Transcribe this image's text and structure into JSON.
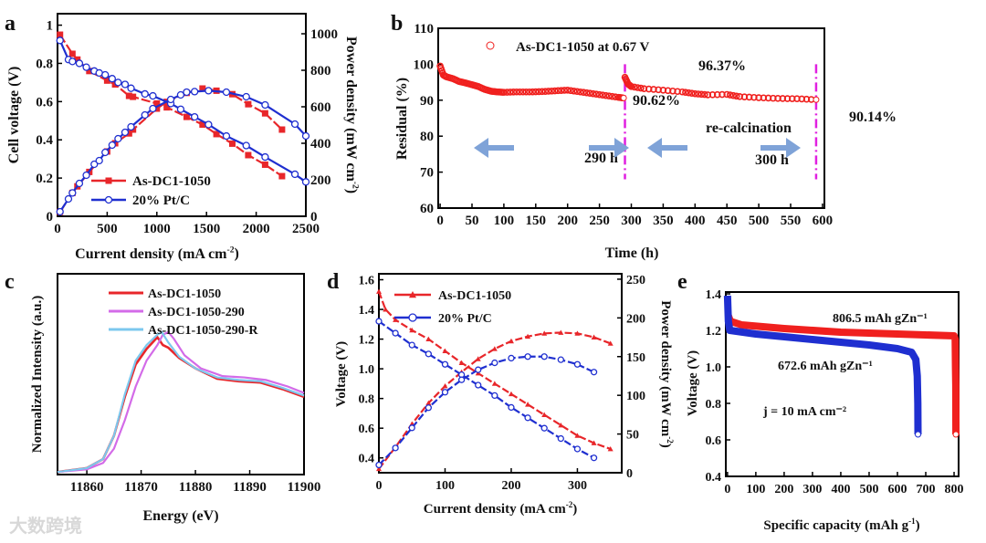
{
  "watermark": "大数跨境",
  "chart_data": [
    {
      "panel": "a",
      "type": "line",
      "xlabel": "Current density (mA cm⁻²)",
      "ylabel": "Cell voltage (V)",
      "y2label": "Power density (mW cm⁻²)",
      "xlim": [
        0,
        2500
      ],
      "ylim": [
        0,
        1.06
      ],
      "y2lim": [
        0,
        1110
      ],
      "xticks": [
        0,
        500,
        1000,
        1500,
        2000,
        2500
      ],
      "yticks": [
        0.0,
        0.2,
        0.4,
        0.6,
        0.8,
        1.0
      ],
      "y2ticks": [
        0,
        200,
        400,
        600,
        800,
        1000
      ],
      "legend": [
        "As-DC1-1050",
        "20% Pt/C"
      ],
      "legend_position": "bottom-left",
      "series": [
        {
          "name": "As-DC1-1050",
          "axis": "left",
          "color": "#e8262a",
          "marker": "square",
          "x": [
            25,
            150,
            200,
            320,
            500,
            580,
            720,
            760,
            1000,
            1100,
            1300,
            1460,
            1600,
            1760,
            1920,
            2090,
            2260
          ],
          "y": [
            0.95,
            0.85,
            0.82,
            0.76,
            0.71,
            0.69,
            0.63,
            0.625,
            0.59,
            0.57,
            0.52,
            0.48,
            0.43,
            0.38,
            0.32,
            0.27,
            0.21
          ]
        },
        {
          "name": "As-DC1-1050",
          "axis": "right",
          "color": "#e8262a",
          "marker": "square",
          "x": [
            25,
            150,
            200,
            320,
            500,
            580,
            720,
            760,
            1000,
            1100,
            1300,
            1460,
            1600,
            1760,
            1920,
            2090,
            2260
          ],
          "y": [
            24,
            128,
            164,
            243,
            355,
            400,
            454,
            475,
            590,
            627,
            676,
            700,
            688,
            669,
            614,
            564,
            475
          ]
        },
        {
          "name": "20% Pt/C",
          "axis": "left",
          "color": "#1f2fd0",
          "marker": "circle",
          "x": [
            25,
            110,
            150,
            220,
            290,
            370,
            420,
            480,
            550,
            610,
            680,
            740,
            880,
            960,
            1140,
            1240,
            1380,
            1520,
            1700,
            1900,
            2090,
            2390,
            2500
          ],
          "y": [
            0.92,
            0.82,
            0.81,
            0.8,
            0.78,
            0.76,
            0.75,
            0.74,
            0.72,
            0.7,
            0.69,
            0.67,
            0.64,
            0.63,
            0.59,
            0.56,
            0.52,
            0.48,
            0.42,
            0.37,
            0.31,
            0.22,
            0.18
          ]
        },
        {
          "name": "20% Pt/C",
          "axis": "right",
          "color": "#1f2fd0",
          "marker": "circle",
          "x": [
            25,
            110,
            150,
            220,
            290,
            370,
            420,
            480,
            550,
            610,
            680,
            740,
            880,
            960,
            1140,
            1240,
            1300,
            1380,
            1520,
            1700,
            1900,
            2090,
            2390,
            2500
          ],
          "y": [
            25,
            95,
            128,
            180,
            225,
            285,
            305,
            350,
            390,
            425,
            460,
            490,
            555,
            590,
            640,
            665,
            680,
            683,
            688,
            680,
            655,
            610,
            505,
            440
          ]
        }
      ]
    },
    {
      "panel": "b",
      "type": "scatter",
      "xlabel": "Time (h)",
      "ylabel": "Residual (%)",
      "xlim": [
        -3,
        603
      ],
      "ylim": [
        60,
        110
      ],
      "xticks": [
        0,
        50,
        100,
        150,
        200,
        250,
        300,
        350,
        400,
        450,
        500,
        550,
        600
      ],
      "yticks": [
        60,
        70,
        80,
        90,
        100,
        110
      ],
      "legend": [
        "As-DC1-1050 at 0.67 V"
      ],
      "legend_position": "top-left",
      "annotations": [
        "96.37%",
        "90.62%",
        "90.14%",
        "re-calcination",
        "290 h",
        "300 h"
      ],
      "vlines": [
        290,
        590
      ],
      "colors": {
        "series": "#f0201e",
        "vline": "#e020e0",
        "arrow": "#7fa3d8"
      },
      "series": [
        {
          "name": "As-DC1-1050 at 0.67 V",
          "x": [
            0,
            5,
            10,
            20,
            30,
            40,
            50,
            60,
            70,
            80,
            90,
            100,
            120,
            140,
            160,
            180,
            200,
            220,
            240,
            260,
            280,
            288
          ],
          "y": [
            99.5,
            97,
            96.5,
            96,
            95.2,
            94.8,
            94.3,
            93.8,
            93,
            92.5,
            92.3,
            92.2,
            92.3,
            92.3,
            92.4,
            92.6,
            92.8,
            92.3,
            91.8,
            91.3,
            90.8,
            90.62
          ]
        },
        {
          "name": "As-DC1-1050 at 0.67 V (after re-calcination)",
          "x": [
            290,
            295,
            300,
            320,
            350,
            380,
            400,
            420,
            450,
            470,
            500,
            530,
            560,
            590
          ],
          "y": [
            96.37,
            94.5,
            93.8,
            93.2,
            92.8,
            92.3,
            91.8,
            91.5,
            91.6,
            91.0,
            90.7,
            90.5,
            90.4,
            90.14
          ]
        }
      ]
    },
    {
      "panel": "c",
      "type": "line",
      "xlabel": "Energy (eV)",
      "ylabel": "Normalized Intensity (a.u.)",
      "xlim": [
        11854.6,
        11900
      ],
      "ylim": [
        0,
        1.55
      ],
      "xticks": [
        11860,
        11870,
        11880,
        11890,
        11900
      ],
      "legend": [
        "As-DC1-1050",
        "As-DC1-1050-290",
        "As-DC1-1050-290-R"
      ],
      "legend_position": "top-right",
      "series": [
        {
          "name": "As-DC1-1050",
          "color": "#e8262a",
          "x": [
            11854.6,
            11860,
            11863,
            11865,
            11867,
            11869,
            11871,
            11873,
            11874,
            11875,
            11877,
            11880,
            11884,
            11888,
            11892,
            11896,
            11900
          ],
          "y": [
            0.02,
            0.05,
            0.12,
            0.3,
            0.6,
            0.85,
            0.97,
            1.06,
            1.0,
            0.98,
            0.9,
            0.82,
            0.74,
            0.72,
            0.71,
            0.66,
            0.6
          ]
        },
        {
          "name": "As-DC1-1050-290",
          "color": "#d36be8",
          "x": [
            11854.6,
            11860,
            11863,
            11865,
            11867,
            11869,
            11871,
            11873,
            11874,
            11875,
            11876,
            11878,
            11881,
            11885,
            11889,
            11893,
            11897,
            11900
          ],
          "y": [
            0.02,
            0.04,
            0.09,
            0.2,
            0.42,
            0.68,
            0.88,
            1.0,
            1.08,
            1.1,
            1.05,
            0.92,
            0.82,
            0.76,
            0.75,
            0.73,
            0.68,
            0.63
          ]
        },
        {
          "name": "As-DC1-1050-290-R",
          "color": "#7cc8ee",
          "x": [
            11854.6,
            11860,
            11863,
            11865,
            11867,
            11869,
            11871,
            11873,
            11873.8,
            11875,
            11877,
            11880,
            11884,
            11888,
            11892,
            11896,
            11900
          ],
          "y": [
            0.02,
            0.05,
            0.12,
            0.3,
            0.62,
            0.88,
            1.0,
            1.08,
            1.1,
            1.02,
            0.91,
            0.82,
            0.75,
            0.73,
            0.72,
            0.67,
            0.61
          ]
        }
      ]
    },
    {
      "panel": "d",
      "type": "line",
      "xlabel": "Current density (mA cm⁻²)",
      "ylabel": "Voltage (V)",
      "y2label": "Power density (mW cm⁻²)",
      "xlim": [
        0,
        367
      ],
      "ylim": [
        0.3,
        1.64
      ],
      "y2lim": [
        0,
        257
      ],
      "xticks": [
        0,
        100,
        200,
        300
      ],
      "yticks": [
        0.4,
        0.6,
        0.8,
        1.0,
        1.2,
        1.4,
        1.6
      ],
      "y2ticks": [
        0,
        50,
        100,
        150,
        200,
        250
      ],
      "legend": [
        "As-DC1-1050",
        "20% Pt/C"
      ],
      "legend_position": "top-left",
      "series": [
        {
          "name": "As-DC1-1050",
          "axis": "left",
          "color": "#e8262a",
          "marker": "triangle",
          "x": [
            0,
            10,
            25,
            50,
            75,
            100,
            125,
            150,
            175,
            200,
            225,
            250,
            275,
            300,
            325,
            350
          ],
          "y": [
            1.52,
            1.4,
            1.33,
            1.26,
            1.2,
            1.12,
            1.04,
            0.97,
            0.9,
            0.83,
            0.76,
            0.69,
            0.62,
            0.55,
            0.5,
            0.46
          ]
        },
        {
          "name": "As-DC1-1050",
          "axis": "right",
          "color": "#e8262a",
          "marker": "triangle",
          "x": [
            0,
            25,
            50,
            75,
            100,
            125,
            150,
            175,
            200,
            225,
            250,
            275,
            300,
            325,
            350
          ],
          "y": [
            5,
            33,
            63,
            90,
            112,
            130,
            147,
            160,
            170,
            176,
            180,
            181,
            180,
            175,
            167
          ]
        },
        {
          "name": "20% Pt/C",
          "axis": "left",
          "color": "#1f2fd0",
          "marker": "circle",
          "x": [
            0,
            25,
            50,
            75,
            100,
            125,
            150,
            175,
            200,
            225,
            250,
            275,
            300,
            325
          ],
          "y": [
            1.32,
            1.24,
            1.16,
            1.1,
            1.03,
            0.96,
            0.89,
            0.82,
            0.74,
            0.67,
            0.6,
            0.53,
            0.46,
            0.4
          ]
        },
        {
          "name": "20% Pt/C",
          "axis": "right",
          "color": "#1f2fd0",
          "marker": "circle",
          "x": [
            0,
            25,
            50,
            75,
            100,
            125,
            150,
            175,
            200,
            225,
            250,
            275,
            300,
            325
          ],
          "y": [
            10,
            32,
            58,
            84,
            104,
            120,
            133,
            142,
            148,
            150,
            150,
            146,
            140,
            130
          ]
        }
      ]
    },
    {
      "panel": "e",
      "type": "line",
      "xlabel": "Specific capacity (mAh g⁻¹)",
      "ylabel": "Voltage (V)",
      "xlim": [
        -6,
        816
      ],
      "ylim": [
        0.4,
        1.41
      ],
      "xticks": [
        0,
        100,
        200,
        300,
        400,
        500,
        600,
        700,
        800
      ],
      "yticks": [
        0.4,
        0.6,
        0.8,
        1.0,
        1.2,
        1.4
      ],
      "annotations": [
        "806.5 mAh gZn⁻¹",
        "672.6 mAh gZn⁻¹",
        "j = 10 mA cm⁻²"
      ],
      "series": [
        {
          "name": "As-DC1-1050",
          "color": "#f0201e",
          "x": [
            3,
            10,
            50,
            200,
            400,
            600,
            800,
            804,
            805,
            806,
            806.5
          ],
          "y": [
            1.28,
            1.25,
            1.23,
            1.21,
            1.19,
            1.18,
            1.17,
            1.15,
            1.0,
            0.9,
            0.63
          ]
        },
        {
          "name": "20% Pt/C",
          "color": "#1f2fd0",
          "x": [
            0,
            3,
            8,
            100,
            300,
            500,
            600,
            650,
            665,
            670,
            672,
            672.6
          ],
          "y": [
            1.39,
            1.25,
            1.2,
            1.18,
            1.15,
            1.12,
            1.1,
            1.08,
            1.04,
            0.95,
            0.8,
            0.63
          ]
        }
      ]
    }
  ],
  "labels": {
    "a": "a",
    "b": "b",
    "c": "c",
    "d": "d",
    "e": "e",
    "a_xlabel": "Current density (mA cm",
    "a_ylabel": "Cell voltage (V)",
    "a_y2label": "Power density (mW cm",
    "b_xlabel": "Time (h)",
    "b_ylabel": "Residual (%)",
    "b_legend": "As-DC1-1050 at 0.67 V",
    "b_ann1": "96.37%",
    "b_ann2": "90.62%",
    "b_ann3": "90.14%",
    "b_ann4": "re-calcination",
    "b_ann5": "290 h",
    "b_ann6": "300 h",
    "c_xlabel": "Energy (eV)",
    "c_ylabel": "Normalized Intensity (a.u.)",
    "d_xlabel": "Current density (mA cm",
    "d_ylabel": "Voltage (V)",
    "d_y2label": "Power density (mW cm",
    "e_xlabel": "Specific capacity (mAh g",
    "e_ylabel": "Voltage (V)",
    "e_ann1": "806.5 mAh g",
    "e_ann2": "672.6 mAh g",
    "e_sub": "Zn",
    "e_sup": "-1",
    "e_ann3a": "j",
    "e_ann3b": " = 10 mA cm",
    "sup2": "-2",
    "sup1": "-1",
    "close": ")"
  }
}
